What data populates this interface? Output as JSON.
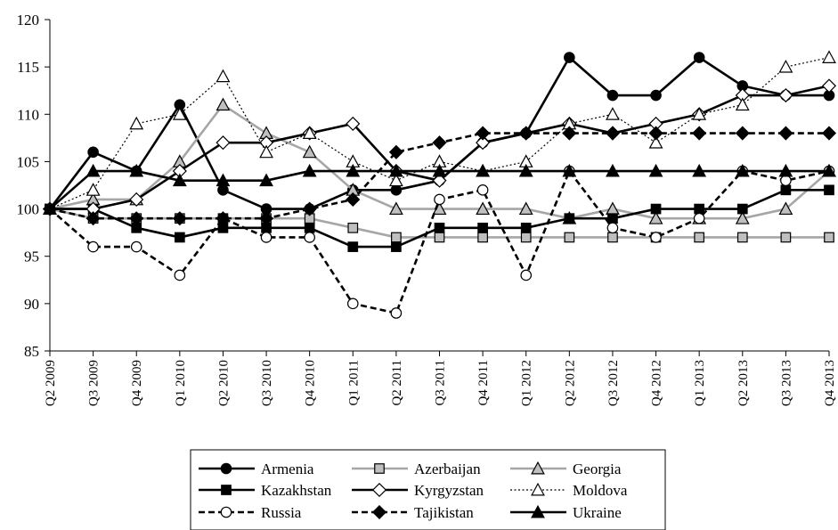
{
  "chart_data": {
    "type": "line",
    "title": "",
    "xlabel": "",
    "ylabel": "",
    "ylim": [
      85,
      120
    ],
    "yticks": [
      85,
      90,
      95,
      100,
      105,
      110,
      115,
      120
    ],
    "grid": false,
    "legend_position": "bottom",
    "categories": [
      "Q2 2009",
      "Q3 2009",
      "Q4 2009",
      "Q1 2010",
      "Q2 2010",
      "Q3 2010",
      "Q4 2010",
      "Q1 2011",
      "Q2 2011",
      "Q3 2011",
      "Q4 2011",
      "Q1 2012",
      "Q2 2012",
      "Q3 2012",
      "Q4 2012",
      "Q1 2013",
      "Q2 2013",
      "Q3 2013",
      "Q4 2013"
    ],
    "series": [
      {
        "name": "Armenia",
        "color": "#000000",
        "dash": "solid",
        "marker": "circle",
        "fill": "#000000",
        "values": [
          100,
          106,
          104,
          111,
          102,
          100,
          100,
          102,
          102,
          103,
          107,
          108,
          116,
          112,
          112,
          116,
          113,
          112,
          112
        ]
      },
      {
        "name": "Azerbaijan",
        "color": "#a6a6a6",
        "dash": "solid",
        "marker": "square",
        "fill": "#bfbfbf",
        "values": [
          100,
          99,
          99,
          99,
          99,
          99,
          99,
          98,
          97,
          97,
          97,
          97,
          97,
          97,
          97,
          97,
          97,
          97,
          97
        ]
      },
      {
        "name": "Georgia",
        "color": "#a6a6a6",
        "dash": "solid",
        "marker": "triangle",
        "fill": "#bfbfbf",
        "values": [
          100,
          101,
          101,
          105,
          111,
          108,
          106,
          102,
          100,
          100,
          100,
          100,
          99,
          100,
          99,
          99,
          99,
          100,
          104
        ]
      },
      {
        "name": "Kazakhstan",
        "color": "#000000",
        "dash": "solid",
        "marker": "square",
        "fill": "#000000",
        "values": [
          100,
          100,
          98,
          97,
          98,
          98,
          98,
          96,
          96,
          98,
          98,
          98,
          99,
          99,
          100,
          100,
          100,
          102,
          102
        ]
      },
      {
        "name": "Kyrgyzstan",
        "color": "#000000",
        "dash": "solid",
        "marker": "diamond",
        "fill": "#ffffff",
        "values": [
          100,
          100,
          101,
          104,
          107,
          107,
          108,
          109,
          104,
          103,
          107,
          108,
          109,
          108,
          109,
          110,
          112,
          112,
          113
        ]
      },
      {
        "name": "Moldova",
        "color": "#000000",
        "dash": "dotted",
        "marker": "triangle",
        "fill": "#ffffff",
        "values": [
          100,
          102,
          109,
          110,
          114,
          106,
          108,
          105,
          103,
          105,
          104,
          105,
          109,
          110,
          107,
          110,
          111,
          115,
          116
        ]
      },
      {
        "name": "Russia",
        "color": "#000000",
        "dash": "dashed",
        "marker": "circle",
        "fill": "#ffffff",
        "values": [
          100,
          96,
          96,
          93,
          99,
          97,
          97,
          90,
          89,
          101,
          102,
          93,
          104,
          98,
          97,
          99,
          104,
          103,
          104
        ]
      },
      {
        "name": "Tajikistan",
        "color": "#000000",
        "dash": "dashed",
        "marker": "diamond",
        "fill": "#000000",
        "values": [
          100,
          99,
          99,
          99,
          99,
          99,
          100,
          101,
          106,
          107,
          108,
          108,
          108,
          108,
          108,
          108,
          108,
          108,
          108
        ]
      },
      {
        "name": "Ukraine",
        "color": "#000000",
        "dash": "solid",
        "marker": "triangle",
        "fill": "#000000",
        "values": [
          100,
          104,
          104,
          103,
          103,
          103,
          104,
          104,
          104,
          104,
          104,
          104,
          104,
          104,
          104,
          104,
          104,
          104,
          104
        ]
      }
    ]
  }
}
